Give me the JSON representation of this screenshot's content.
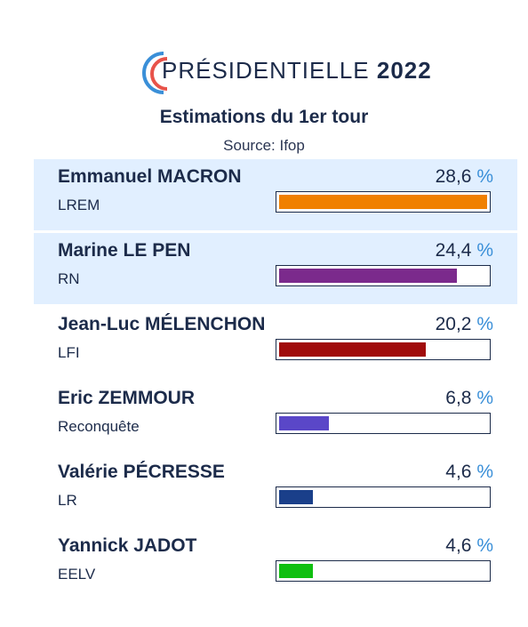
{
  "header": {
    "title_main": "PRÉSIDENTIELLE",
    "title_year": "2022",
    "subtitle": "Estimations du 1er tour",
    "source": "Source: Ifop"
  },
  "percent_symbol": "%",
  "chart_data": {
    "type": "bar",
    "title": "Estimations du 1er tour",
    "xlim": [
      0,
      28.6
    ],
    "series": [
      {
        "values": [
          28.6,
          24.4,
          20.2,
          6.8,
          4.6,
          4.6
        ]
      }
    ],
    "categories": [
      "Emmanuel MACRON",
      "Marine LE PEN",
      "Jean-Luc MÉLENCHON",
      "Eric ZEMMOUR",
      "Valérie PÉCRESSE",
      "Yannick JADOT"
    ]
  },
  "candidates": [
    {
      "name": "Emmanuel MACRON",
      "party": "LREM",
      "value_label": "28,6",
      "value": 28.6,
      "color": "#f08000",
      "highlight": true
    },
    {
      "name": "Marine LE PEN",
      "party": "RN",
      "value_label": "24,4",
      "value": 24.4,
      "color": "#7b2a8c",
      "highlight": true
    },
    {
      "name": "Jean-Luc MÉLENCHON",
      "party": "LFI",
      "value_label": "20,2",
      "value": 20.2,
      "color": "#a00c0c",
      "highlight": false
    },
    {
      "name": "Eric ZEMMOUR",
      "party": "Reconquête",
      "value_label": "6,8",
      "value": 6.8,
      "color": "#5a47c8",
      "highlight": false
    },
    {
      "name": "Valérie PÉCRESSE",
      "party": "LR",
      "value_label": "4,6",
      "value": 4.6,
      "color": "#1a3f8a",
      "highlight": false
    },
    {
      "name": "Yannick JADOT",
      "party": "EELV",
      "value_label": "4,6",
      "value": 4.6,
      "color": "#0fbf10",
      "highlight": false
    }
  ],
  "colors": {
    "text": "#1c2b4a",
    "highlight_bg": "#e1efff",
    "percent_accent": "#3a8fd8",
    "logo_red": "#e8534a",
    "logo_blue": "#3a8fd8"
  }
}
